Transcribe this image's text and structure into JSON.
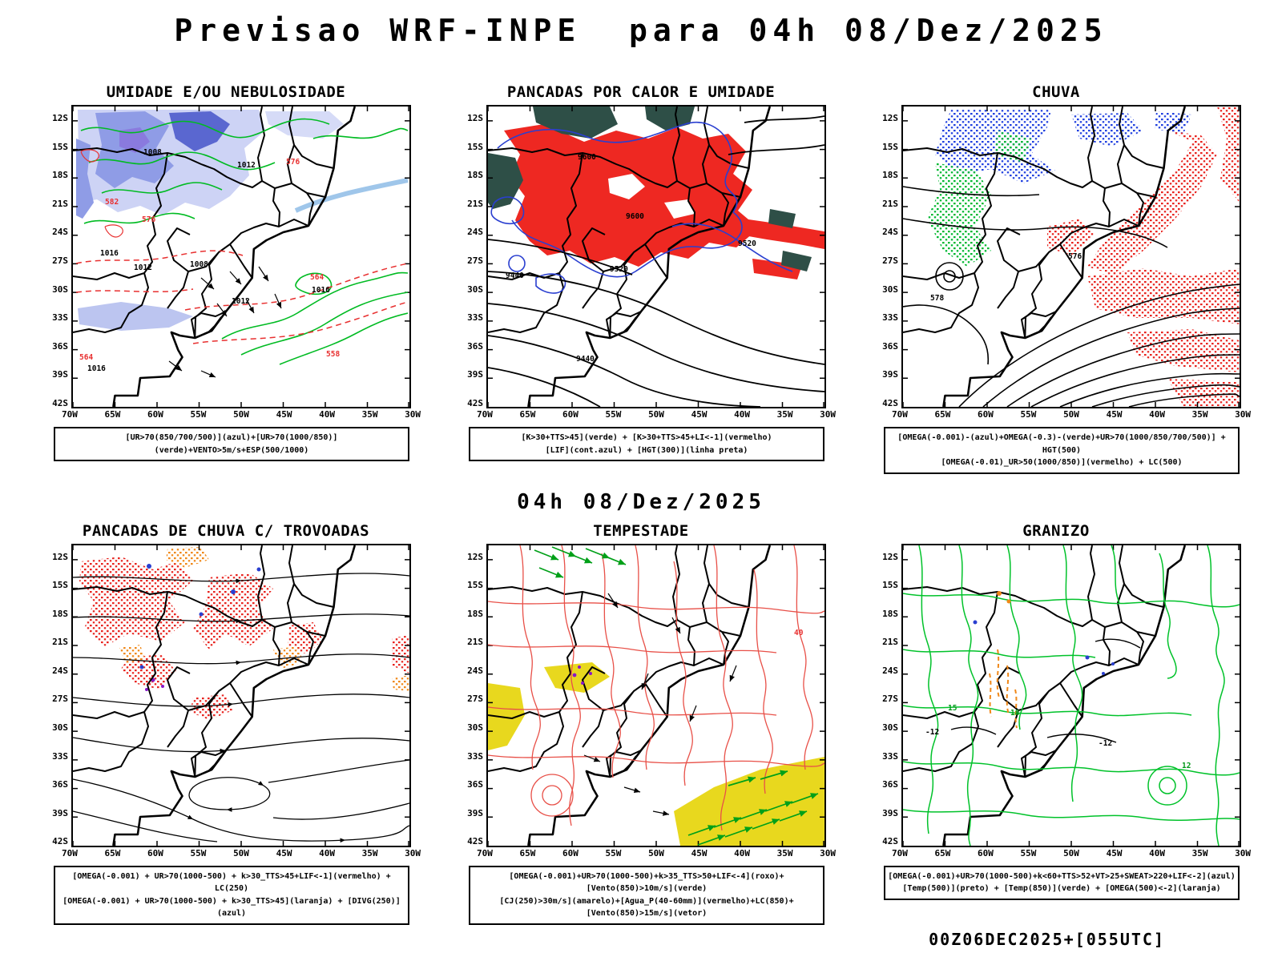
{
  "title": "Previsao WRF-INPE  para 04h 08/Dez/2025",
  "valid_label": "04h 08/Dez/2025",
  "run_label": "00Z06DEC2025+[055UTC]",
  "axes": {
    "lat": [
      "12S",
      "15S",
      "18S",
      "21S",
      "24S",
      "27S",
      "30S",
      "33S",
      "36S",
      "39S",
      "42S"
    ],
    "lon": [
      "70W",
      "65W",
      "60W",
      "55W",
      "50W",
      "45W",
      "40W",
      "35W",
      "30W"
    ]
  },
  "colors": {
    "shade_blue_light": "#cdd3f5",
    "shade_blue": "#8f9ce6",
    "shade_blue_dark": "#5a67d0",
    "shade_violet": "#8a7ade",
    "fill_red": "#ee2822",
    "fill_dark_green": "#2e4f47",
    "fill_yellow": "#e8d81e",
    "contour_green": "#00bb22",
    "contour_blue": "#2a3fd0",
    "contour_red": "#e83030",
    "speckle_red": "#e8231e",
    "speckle_blue": "#2040e0",
    "speckle_green": "#00b830",
    "speckle_orange": "#f08818",
    "speckle_purple": "#8818c8",
    "line_black": "#000000"
  },
  "panels": [
    {
      "id": "umidade",
      "title": "UMIDADE E/OU NEBULOSIDADE",
      "caption": [
        "[UR>70(850/700/500)](azul)+[UR>70(1000/850)](verde)+VENTO>5m/s+ESP(500/1000)"
      ],
      "labels": [
        "1008",
        "1012",
        "1016",
        "1008",
        "1012",
        "1016",
        "1012",
        "1016",
        "576",
        "576",
        "582",
        "564",
        "564",
        "558"
      ]
    },
    {
      "id": "pancadas-calor",
      "title": "PANCADAS POR CALOR E UMIDADE",
      "caption": [
        "[K>30+TTS>45](verde) + [K>30+TTS>45+LI<-1](vermelho)",
        "[LIF](cont.azul) + [HGT(300)](linha preta)"
      ],
      "labels": [
        "9600",
        "9600",
        "9520",
        "9520",
        "9440",
        "9440"
      ]
    },
    {
      "id": "chuva",
      "title": "CHUVA",
      "caption": [
        "[OMEGA(-0.001)-(azul)+OMEGA(-0.3)-(verde)+UR>70(1000/850/700/500)] + HGT(500)",
        "[OMEGA(-0.01)_UR>50(1000/850)](vermelho) + LC(500)"
      ],
      "labels": [
        "578",
        "576"
      ]
    },
    {
      "id": "trovoadas",
      "title": "PANCADAS DE CHUVA C/ TROVOADAS",
      "caption": [
        "[OMEGA(-0.001) + UR>70(1000-500) + k>30_TTS>45+LIF<-1](vermelho) + LC(250)",
        "[OMEGA(-0.001) + UR>70(1000-500) + k>30_TTS>45](laranja) + [DIVG(250)](azul)"
      ],
      "labels": []
    },
    {
      "id": "tempestade",
      "title": "TEMPESTADE",
      "caption": [
        "[OMEGA(-0.001)+UR>70(1000-500)+k>35_TTS>50+LIF<-4](roxo)+[Vento(850)>10m/s](verde)",
        "[CJ(250)>30m/s](amarelo)+[Agua_P(40-60mm)](vermelho)+LC(850)+[Vento(850)>15m/s](vetor)"
      ],
      "labels": [
        "40"
      ]
    },
    {
      "id": "granizo",
      "title": "GRANIZO",
      "caption": [
        "[OMEGA(-0.001)+UR>70(1000-500)+k<60+TTS>52+VT>25+SWEAT>220+LIF<-2](azul)",
        "[Temp(500)](preto) + [Temp(850)](verde) + [OMEGA(500)<-2](laranja)"
      ],
      "labels": [
        "-12",
        "-12",
        "12",
        "15",
        "18"
      ]
    }
  ]
}
